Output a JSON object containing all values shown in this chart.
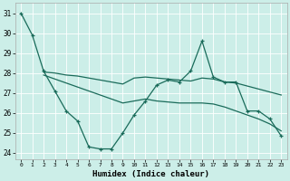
{
  "xlabel": "Humidex (Indice chaleur)",
  "bg_color": "#cceee8",
  "line_color": "#1a6b5a",
  "xlim": [
    -0.5,
    23.5
  ],
  "ylim": [
    23.7,
    31.5
  ],
  "yticks": [
    24,
    25,
    26,
    27,
    28,
    29,
    30,
    31
  ],
  "xticks": [
    0,
    1,
    2,
    3,
    4,
    5,
    6,
    7,
    8,
    9,
    10,
    11,
    12,
    13,
    14,
    15,
    16,
    17,
    18,
    19,
    20,
    21,
    22,
    23
  ],
  "line1_x": [
    0,
    1,
    2,
    3,
    4,
    5,
    6,
    7,
    8,
    9,
    10,
    11,
    12,
    13,
    14,
    15,
    16,
    17,
    18,
    19,
    20,
    21,
    22,
    23
  ],
  "line1_y": [
    31.0,
    29.9,
    28.1,
    27.1,
    26.1,
    25.6,
    24.3,
    24.2,
    24.2,
    25.0,
    25.9,
    26.6,
    27.4,
    27.65,
    27.55,
    28.1,
    29.6,
    27.8,
    27.55,
    27.55,
    26.1,
    26.1,
    25.7,
    24.85
  ],
  "line2_x": [
    2,
    3,
    4,
    5,
    6,
    7,
    8,
    9,
    10,
    11,
    12,
    13,
    14,
    15,
    16,
    17,
    18,
    19,
    20,
    21,
    22,
    23
  ],
  "line2_y": [
    28.05,
    28.0,
    27.9,
    27.85,
    27.75,
    27.65,
    27.55,
    27.45,
    27.75,
    27.8,
    27.75,
    27.7,
    27.65,
    27.6,
    27.75,
    27.7,
    27.55,
    27.5,
    27.35,
    27.2,
    27.05,
    26.9
  ],
  "line3_x": [
    2,
    3,
    4,
    5,
    6,
    7,
    8,
    9,
    10,
    11,
    12,
    13,
    14,
    15,
    16,
    17,
    18,
    19,
    20,
    21,
    22,
    23
  ],
  "line3_y": [
    27.9,
    27.7,
    27.5,
    27.3,
    27.1,
    26.9,
    26.7,
    26.5,
    26.6,
    26.7,
    26.6,
    26.55,
    26.5,
    26.5,
    26.5,
    26.45,
    26.3,
    26.1,
    25.9,
    25.7,
    25.45,
    25.1
  ]
}
